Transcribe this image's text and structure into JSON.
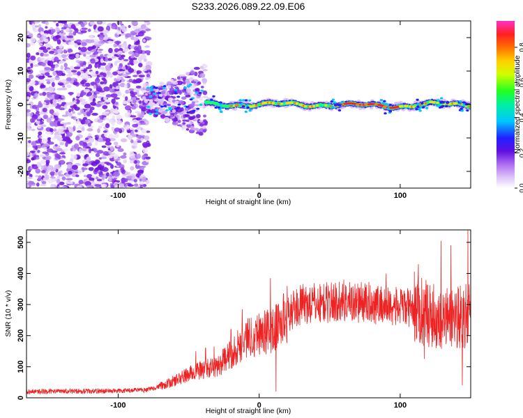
{
  "chart_data": [
    {
      "type": "heatmap",
      "title": "S233.2026.089.22.09.E06",
      "xlabel": "Height of straight line (km)",
      "ylabel": "Frequency (Hz)",
      "xlim": [
        -165,
        150
      ],
      "ylim": [
        -25,
        25
      ],
      "x_ticks": [
        -100,
        0,
        100
      ],
      "y_ticks": [
        -20,
        -10,
        0,
        10,
        20
      ],
      "colorbar": {
        "label": "Normalized spectral amplitude",
        "range": [
          0,
          1
        ],
        "ticks": [
          "0.0",
          "0.2",
          "0.4",
          "0.6",
          "0.8"
        ],
        "colors": [
          "#ffffff",
          "#d0a8f8",
          "#8a2be2",
          "#2020ff",
          "#00e0ff",
          "#00ff60",
          "#ffff00",
          "#ff8000",
          "#ff2020",
          "#ff30c0"
        ]
      },
      "features": {
        "noise_region_km": [
          -165,
          -82
        ],
        "transition_region_km": [
          -82,
          -38
        ],
        "signal_start_km": -38,
        "signal_center_hz": 0,
        "signal_peak_region_km": [
          55,
          100
        ]
      }
    },
    {
      "type": "line",
      "xlabel": "Height of straight line (km)",
      "ylabel": "SNR (10 * v/v)",
      "xlim": [
        -165,
        150
      ],
      "ylim": [
        0,
        540
      ],
      "x_ticks": [
        -100,
        0,
        100
      ],
      "y_ticks": [
        0,
        100,
        200,
        300,
        400,
        500
      ],
      "color": "#ee2222",
      "trend": {
        "x": [
          -165,
          -100,
          -80,
          -65,
          -45,
          -30,
          -20,
          -10,
          0,
          10,
          20,
          30,
          60,
          80,
          100,
          110,
          120,
          130,
          140,
          150
        ],
        "y": [
          20,
          22,
          25,
          45,
          85,
          100,
          140,
          190,
          210,
          215,
          270,
          300,
          310,
          305,
          290,
          290,
          270,
          250,
          265,
          260
        ]
      },
      "spikes": [
        {
          "x": -45,
          "y": 150
        },
        {
          "x": -38,
          "y": 160
        },
        {
          "x": -32,
          "y": 165
        },
        {
          "x": -20,
          "y": 220
        },
        {
          "x": -12,
          "y": 285
        },
        {
          "x": 8,
          "y": 385
        },
        {
          "x": 12,
          "y": 20
        },
        {
          "x": 60,
          "y": 380
        },
        {
          "x": 90,
          "y": 400
        },
        {
          "x": 113,
          "y": 430
        },
        {
          "x": 117,
          "y": 125
        },
        {
          "x": 129,
          "y": 505
        },
        {
          "x": 136,
          "y": 490
        },
        {
          "x": 144,
          "y": 40
        },
        {
          "x": 148,
          "y": 540
        },
        {
          "x": 150,
          "y": 130
        }
      ]
    }
  ]
}
